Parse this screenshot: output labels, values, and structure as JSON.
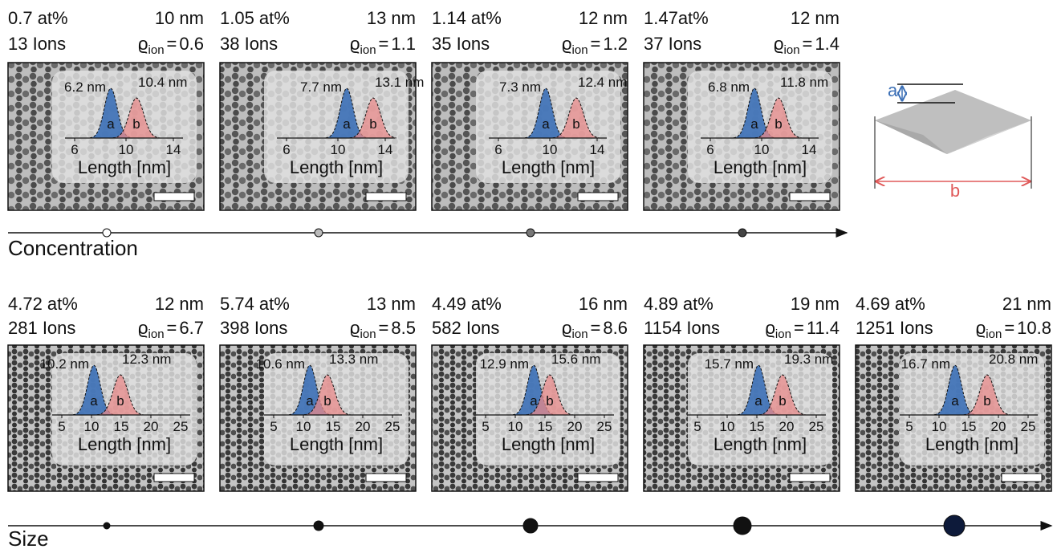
{
  "rows": [
    {
      "label": "Concentration",
      "hist_ticks": [
        6,
        10,
        14
      ],
      "panels": [
        {
          "concentration": "0.7 at%",
          "size": "10 nm",
          "ions": "13 Ions",
          "rho": "0.6",
          "a_label": "6.2 nm",
          "b_label": "10.4 nm"
        },
        {
          "concentration": "1.05 at%",
          "size": "13 nm",
          "ions": "38 Ions",
          "rho": "1.1",
          "a_label": "7.7 nm",
          "b_label": "13.1 nm"
        },
        {
          "concentration": "1.14 at%",
          "size": "12 nm",
          "ions": "35 Ions",
          "rho": "1.2",
          "a_label": "7.3 nm",
          "b_label": "12.4 nm"
        },
        {
          "concentration": "1.47at%",
          "size": "12 nm",
          "ions": "37 Ions",
          "rho": "1.4",
          "a_label": "6.8 nm",
          "b_label": "11.8 nm"
        }
      ]
    },
    {
      "label": "Size",
      "hist_ticks": [
        5,
        10,
        15,
        20,
        25
      ],
      "panels": [
        {
          "concentration": "4.72 at%",
          "size": "12 nm",
          "ions": "281 Ions",
          "rho": "6.7",
          "a_label": "10.2 nm",
          "b_label": "12.3 nm"
        },
        {
          "concentration": "5.74 at%",
          "size": "13 nm",
          "ions": "398 Ions",
          "rho": "8.5",
          "a_label": "10.6 nm",
          "b_label": "13.3 nm"
        },
        {
          "concentration": "4.49 at%",
          "size": "16 nm",
          "ions": "582 Ions",
          "rho": "8.6",
          "a_label": "12.9 nm",
          "b_label": "15.6 nm"
        },
        {
          "concentration": "4.89 at%",
          "size": "19 nm",
          "ions": "1154 Ions",
          "rho": "11.4",
          "a_label": "15.7 nm",
          "b_label": "19.3 nm"
        },
        {
          "concentration": "4.69 at%",
          "size": "21 nm",
          "ions": "1251 Ions",
          "rho": "10.8",
          "a_label": "16.7 nm",
          "b_label": "20.8 nm"
        }
      ]
    }
  ],
  "rho_symbol": "ϱ",
  "rho_sub": "ion",
  "equals": "=",
  "hist_x_label": "Length [nm]",
  "peak_a": "a",
  "peak_b": "b",
  "diagram": {
    "a": "a",
    "b": "b"
  }
}
